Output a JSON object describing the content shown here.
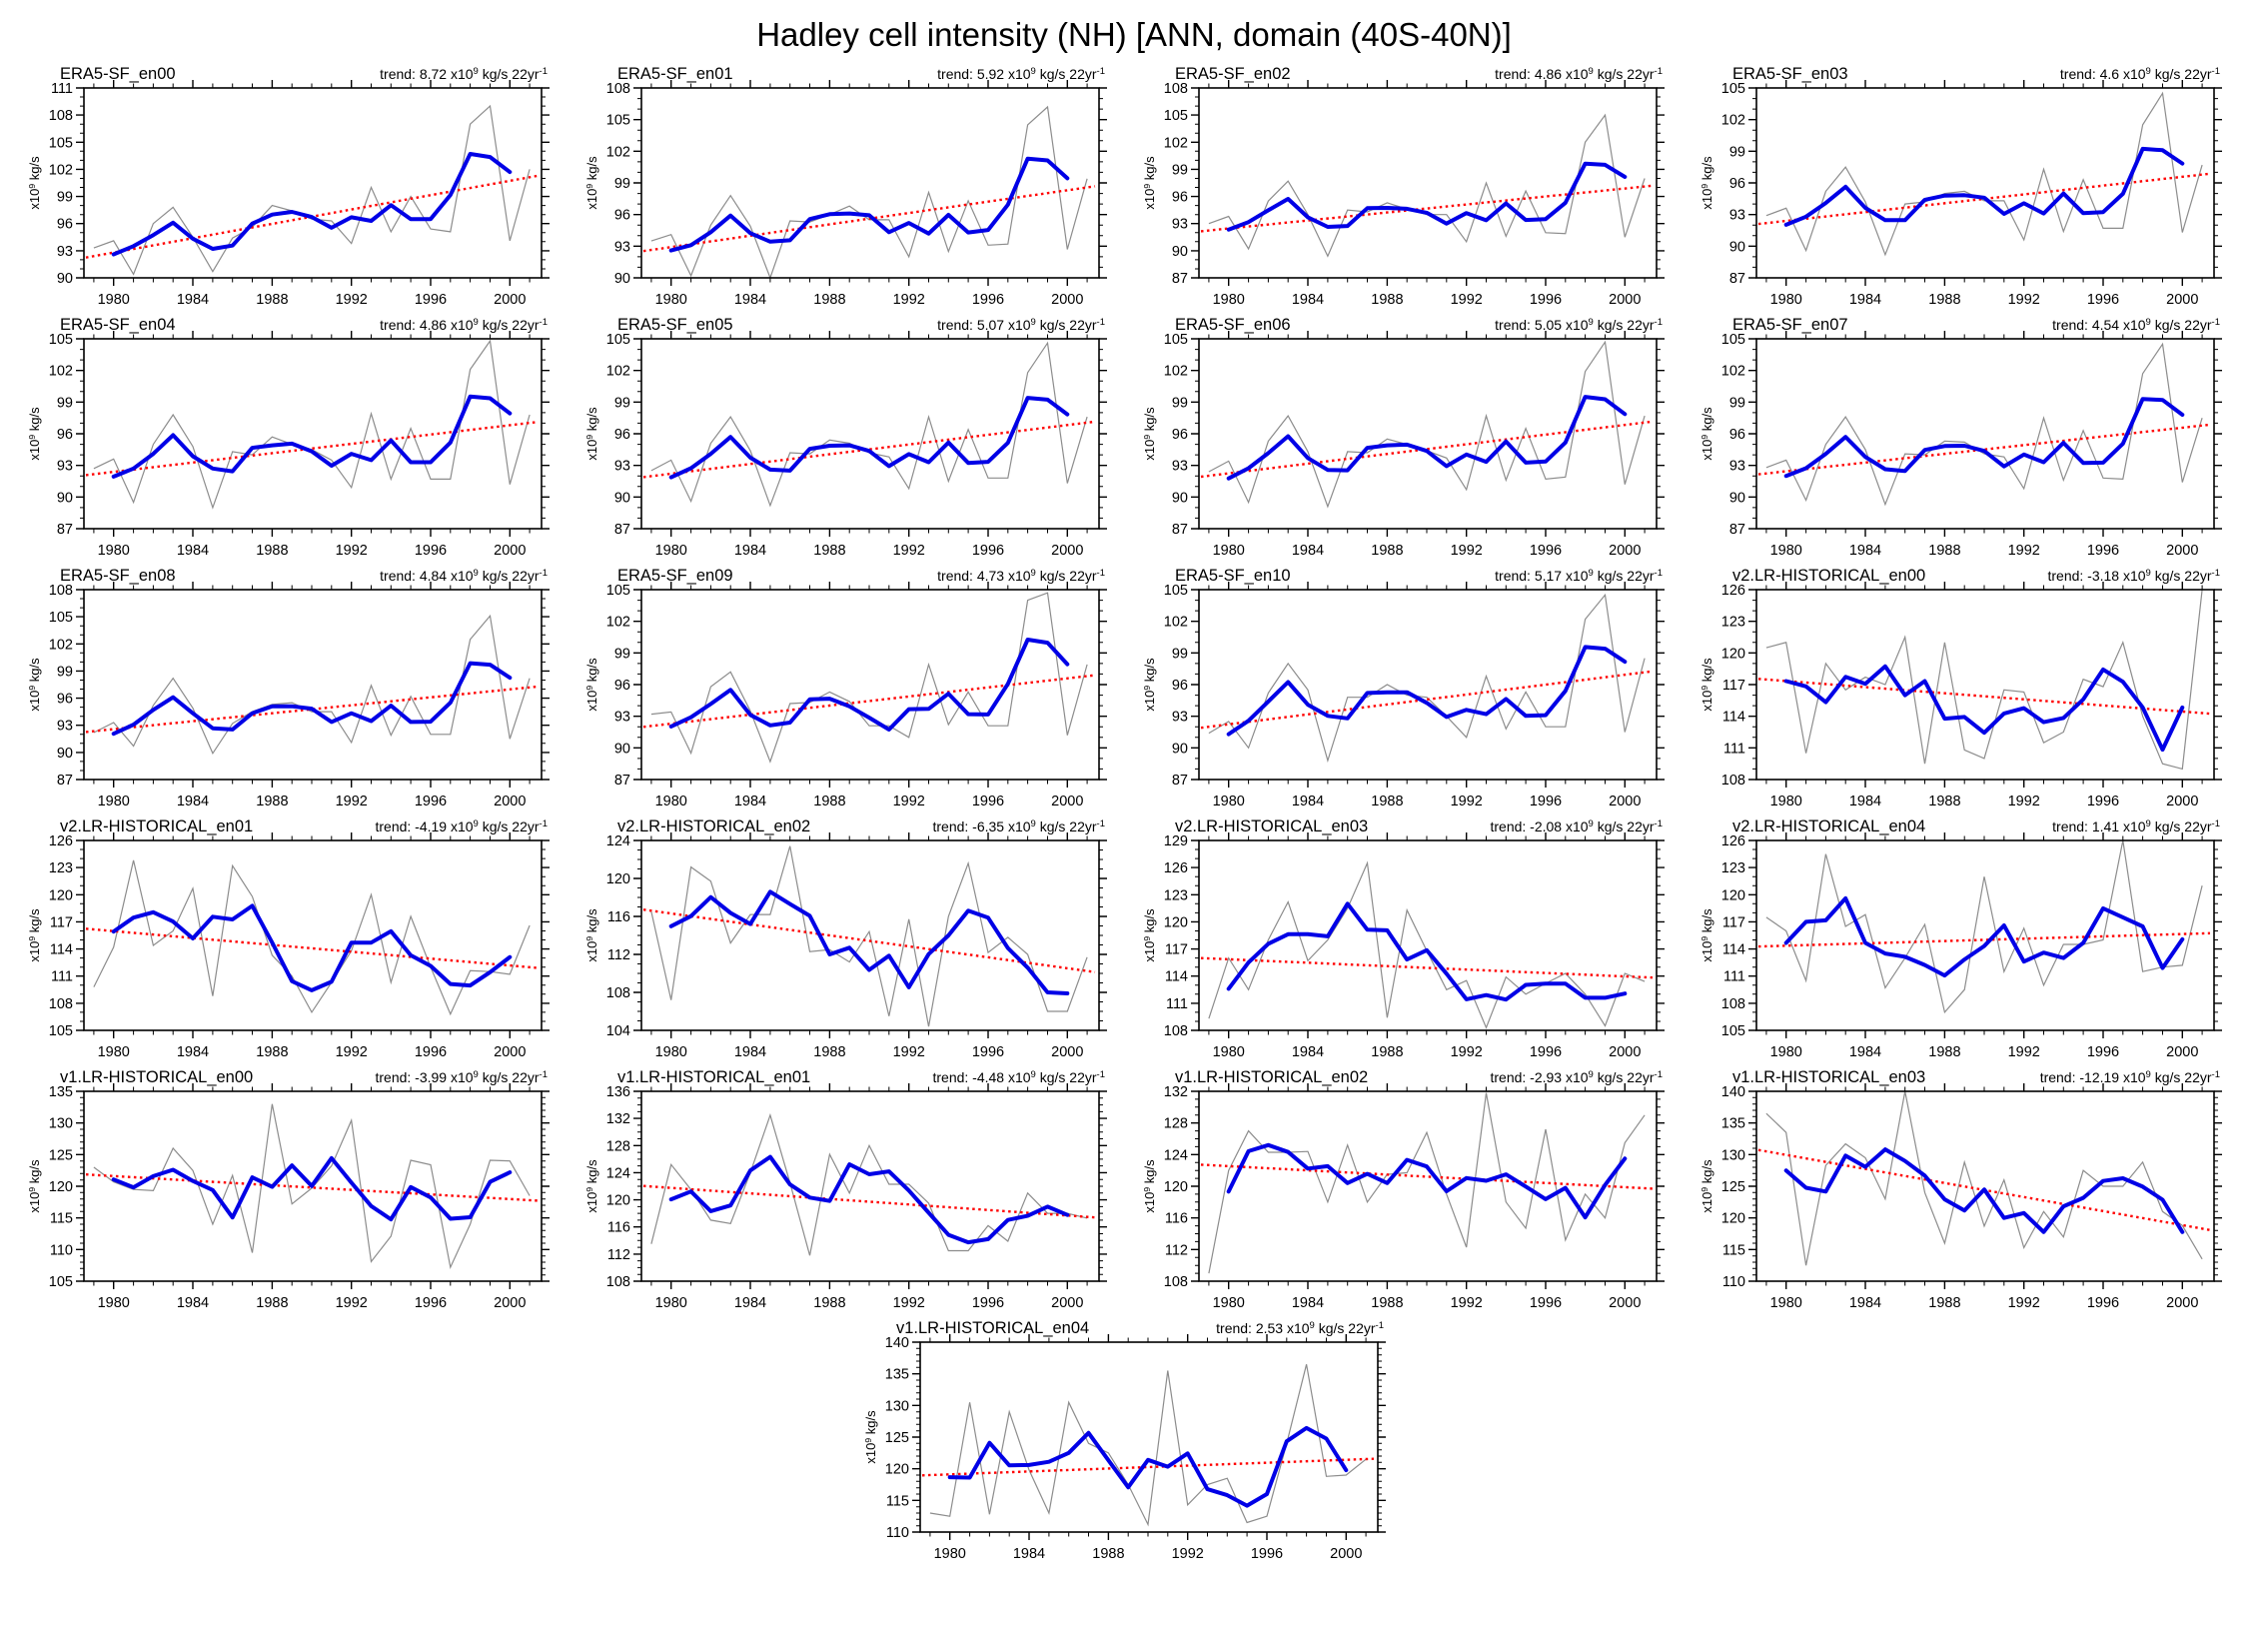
{
  "title": "Hadley cell intensity (NH) [ANN, domain (40S-40N)]",
  "labels": {
    "trend_prefix": "trend:",
    "x10": "x10",
    "exp9": "9",
    "trend_units": "kg/s 22yr",
    "exp_minus1": "-1",
    "yaxis_units": "kg/s"
  },
  "chart_data": {
    "type": "line",
    "title": "Hadley cell intensity (NH) [ANN, domain (40S-40N)]",
    "x_years": [
      1979,
      1980,
      1981,
      1982,
      1983,
      1984,
      1985,
      1986,
      1987,
      1988,
      1989,
      1990,
      1991,
      1992,
      1993,
      1994,
      1995,
      1996,
      1997,
      1998,
      1999,
      2000,
      2001
    ],
    "x_ticks": [
      1980,
      1984,
      1988,
      1992,
      1996,
      2000
    ],
    "x_range": [
      1978.5,
      2001.6
    ],
    "grid": false,
    "ylabel": "x10^9 kg/s",
    "smoothing_window": 3,
    "colors": {
      "annual": "#8c8c8c",
      "smoothed": "#0000e6",
      "trend": "#ff0000",
      "frame": "#000000"
    },
    "panels": [
      {
        "id": "era5-sf-en00",
        "title": "ERA5-SF_en00",
        "trend": "8.72",
        "ymin": 90,
        "ymax": 111,
        "ystep": 3,
        "values": [
          93.3,
          94.1,
          90.4,
          96.0,
          97.8,
          94.5,
          90.7,
          94.4,
          95.6,
          98.0,
          97.4,
          96.5,
          96.3,
          93.8,
          100.0,
          95.1,
          99.0,
          95.4,
          95.1,
          107.0,
          109.0,
          94.1,
          102.0
        ]
      },
      {
        "id": "era5-sf-en01",
        "title": "ERA5-SF_en01",
        "trend": "5.92",
        "ymin": 90,
        "ymax": 108,
        "ystep": 3,
        "values": [
          93.5,
          94.1,
          90.2,
          95.0,
          97.8,
          94.9,
          90.0,
          95.4,
          95.3,
          96.0,
          96.8,
          95.5,
          95.5,
          92.0,
          98.1,
          92.5,
          97.3,
          93.1,
          93.2,
          104.5,
          106.2,
          92.7,
          99.4
        ]
      },
      {
        "id": "era5-sf-en02",
        "title": "ERA5-SF_en02",
        "trend": "4.86",
        "ymin": 87,
        "ymax": 108,
        "ystep": 3,
        "values": [
          93.0,
          93.8,
          90.2,
          95.5,
          97.7,
          94.0,
          89.4,
          94.5,
          94.3,
          95.3,
          94.6,
          94.0,
          94.0,
          91.0,
          97.5,
          91.6,
          96.6,
          92.0,
          91.9,
          102.0,
          105.0,
          91.5,
          98.0
        ]
      },
      {
        "id": "era5-sf-en03",
        "title": "ERA5-SF_en03",
        "trend": "4.6",
        "ymin": 87,
        "ymax": 105,
        "ystep": 3,
        "values": [
          92.9,
          93.6,
          89.6,
          95.2,
          97.5,
          94.2,
          89.2,
          94.0,
          94.2,
          95.0,
          95.2,
          94.3,
          94.3,
          90.6,
          97.3,
          91.4,
          96.3,
          91.7,
          91.7,
          101.5,
          104.5,
          91.3,
          97.7
        ]
      },
      {
        "id": "era5-sf-en04",
        "title": "ERA5-SF_en04",
        "trend": "4.86",
        "ymin": 87,
        "ymax": 105,
        "ystep": 3,
        "values": [
          92.7,
          93.6,
          89.5,
          95.0,
          97.8,
          94.8,
          89.0,
          94.3,
          94.0,
          95.7,
          95.0,
          94.5,
          93.5,
          90.9,
          97.9,
          91.7,
          96.5,
          91.7,
          91.7,
          102.1,
          104.8,
          91.2,
          97.8
        ]
      },
      {
        "id": "era5-sf-en05",
        "title": "ERA5-SF_en05",
        "trend": "5.07",
        "ymin": 87,
        "ymax": 105,
        "ystep": 3,
        "values": [
          92.5,
          93.5,
          89.6,
          95.1,
          97.6,
          94.4,
          89.2,
          94.2,
          94.1,
          95.4,
          95.1,
          94.2,
          93.8,
          90.8,
          97.6,
          91.5,
          96.4,
          91.8,
          91.8,
          101.8,
          104.6,
          91.3,
          97.6
        ]
      },
      {
        "id": "era5-sf-en06",
        "title": "ERA5-SF_en06",
        "trend": "5.05",
        "ymin": 87,
        "ymax": 105,
        "ystep": 3,
        "values": [
          92.4,
          93.4,
          89.5,
          95.3,
          97.7,
          94.3,
          89.1,
          94.3,
          94.2,
          95.5,
          95.0,
          94.4,
          93.7,
          90.7,
          97.7,
          91.6,
          96.5,
          91.7,
          91.9,
          101.9,
          104.7,
          91.2,
          97.7
        ]
      },
      {
        "id": "era5-sf-en07",
        "title": "ERA5-SF_en07",
        "trend": "4.54",
        "ymin": 87,
        "ymax": 105,
        "ystep": 3,
        "values": [
          92.8,
          93.5,
          89.7,
          95.0,
          97.6,
          94.5,
          89.3,
          94.1,
          94.0,
          95.3,
          95.2,
          94.1,
          93.8,
          90.8,
          97.5,
          91.6,
          96.3,
          91.8,
          91.7,
          101.7,
          104.5,
          91.4,
          97.5
        ]
      },
      {
        "id": "era5-sf-en08",
        "title": "ERA5-SF_en08",
        "trend": "4.84",
        "ymin": 87,
        "ymax": 108,
        "ystep": 3,
        "values": [
          92.2,
          93.3,
          90.7,
          95.2,
          98.2,
          94.9,
          89.9,
          93.2,
          94.5,
          95.3,
          95.5,
          94.5,
          94.5,
          91.1,
          97.4,
          91.9,
          96.2,
          92.0,
          92.0,
          102.5,
          105.1,
          91.5,
          98.2
        ]
      },
      {
        "id": "era5-sf-en09",
        "title": "ERA5-SF_en09",
        "trend": "4.73",
        "ymin": 87,
        "ymax": 105,
        "ystep": 3,
        "values": [
          93.2,
          93.4,
          89.5,
          95.8,
          97.2,
          93.5,
          88.7,
          94.2,
          94.3,
          95.3,
          94.4,
          92.1,
          92.1,
          91.0,
          97.9,
          92.2,
          95.3,
          92.1,
          92.1,
          104.0,
          104.7,
          91.2,
          97.9
        ]
      },
      {
        "id": "era5-sf-en10",
        "title": "ERA5-SF_en10",
        "trend": "5.17",
        "ymin": 87,
        "ymax": 105,
        "ystep": 3,
        "values": [
          91.4,
          92.5,
          90.0,
          95.2,
          98.0,
          95.5,
          88.8,
          94.8,
          94.8,
          96.0,
          95.0,
          94.8,
          93.0,
          91.0,
          96.8,
          91.8,
          95.3,
          92.0,
          92.0,
          102.2,
          104.5,
          91.5,
          98.5
        ]
      },
      {
        "id": "v2-lr-historical-en00",
        "title": "v2.LR-HISTORICAL_en00",
        "trend": "-3.18",
        "ymin": 108,
        "ymax": 126,
        "ystep": 3,
        "values": [
          120.5,
          121.0,
          110.5,
          119.0,
          116.5,
          117.7,
          117.0,
          121.5,
          109.5,
          121.0,
          110.8,
          110.0,
          116.5,
          116.3,
          111.5,
          112.5,
          117.5,
          116.8,
          121.0,
          114.0,
          109.5,
          109.0,
          126.0
        ]
      },
      {
        "id": "v2-lr-historical-en01",
        "title": "v2.LR-HISTORICAL_en01",
        "trend": "-4.19",
        "ymin": 105,
        "ymax": 126,
        "ystep": 3,
        "values": [
          109.8,
          114.2,
          123.8,
          114.4,
          116.0,
          120.7,
          108.8,
          123.2,
          119.8,
          113.3,
          111.0,
          107.0,
          110.3,
          113.8,
          120.0,
          110.3,
          117.6,
          112.0,
          106.8,
          111.6,
          111.5,
          111.2,
          116.6
        ]
      },
      {
        "id": "v2-lr-historical-en02",
        "title": "v2.LR-HISTORICAL_en02",
        "trend": "-6.35",
        "ymin": 104,
        "ymax": 124,
        "ystep": 4,
        "values": [
          116.5,
          107.2,
          121.2,
          119.7,
          113.2,
          116.2,
          116.2,
          123.4,
          112.3,
          112.5,
          111.2,
          114.4,
          105.5,
          115.7,
          104.4,
          116.0,
          121.6,
          112.2,
          113.8,
          112.0,
          106.0,
          106.0,
          111.7
        ]
      },
      {
        "id": "v2-lr-historical-en03",
        "title": "v2.LR-HISTORICAL_en03",
        "trend": "-2.08",
        "ymin": 108,
        "ymax": 129,
        "ystep": 3,
        "values": [
          109.3,
          116.0,
          112.5,
          118.0,
          122.2,
          115.7,
          118.0,
          121.5,
          126.5,
          109.4,
          121.3,
          116.8,
          112.5,
          113.5,
          108.3,
          113.9,
          112.0,
          113.2,
          114.3,
          112.0,
          108.5,
          114.3,
          113.4
        ]
      },
      {
        "id": "v2-lr-historical-en04",
        "title": "v2.LR-HISTORICAL_en04",
        "trend": "1.41",
        "ymin": 105,
        "ymax": 126,
        "ystep": 3,
        "values": [
          117.5,
          116.0,
          110.5,
          124.5,
          116.5,
          117.8,
          109.7,
          113.0,
          116.7,
          107.0,
          109.5,
          122.0,
          111.5,
          116.3,
          110.0,
          114.5,
          114.5,
          115.0,
          126.0,
          111.5,
          112.0,
          112.2,
          121.0
        ]
      },
      {
        "id": "v1-lr-historical-en00",
        "title": "v1.LR-HISTORICAL_en00",
        "trend": "-3.99",
        "ymin": 105,
        "ymax": 135,
        "ystep": 5,
        "values": [
          123.0,
          120.7,
          119.5,
          119.3,
          126.0,
          122.5,
          114.0,
          121.7,
          109.5,
          133.0,
          117.2,
          119.7,
          123.2,
          130.4,
          108.1,
          112.1,
          124.1,
          123.4,
          107.2,
          114.0,
          124.1,
          124.0,
          118.5
        ]
      },
      {
        "id": "v1-lr-historical-en01",
        "title": "v1.LR-HISTORICAL_en01",
        "trend": "-4.48",
        "ymin": 108,
        "ymax": 136,
        "ystep": 4,
        "values": [
          113.5,
          125.2,
          121.5,
          117.0,
          116.5,
          124.0,
          132.5,
          122.5,
          111.8,
          126.7,
          121.0,
          128.0,
          122.3,
          122.3,
          119.5,
          112.5,
          112.5,
          116.2,
          113.9,
          121.0,
          118.0,
          118.0,
          117.3
        ]
      },
      {
        "id": "v1-lr-historical-en02",
        "title": "v1.LR-HISTORICAL_en02",
        "trend": "-2.93",
        "ymin": 108,
        "ymax": 132,
        "ystep": 4,
        "values": [
          109.0,
          122.0,
          127.0,
          124.3,
          124.3,
          124.4,
          118.0,
          125.2,
          118.0,
          121.5,
          121.7,
          126.8,
          119.0,
          112.3,
          131.8,
          118.0,
          114.7,
          127.2,
          113.2,
          119.0,
          116.0,
          125.5,
          129.0
        ]
      },
      {
        "id": "v1-lr-historical-en03",
        "title": "v1.LR-HISTORICAL_en03",
        "trend": "-12.19",
        "ymin": 110,
        "ymax": 140,
        "ystep": 5,
        "values": [
          136.5,
          133.5,
          112.5,
          128.3,
          131.7,
          129.5,
          123.0,
          140.0,
          124.0,
          116.0,
          128.8,
          118.7,
          126.0,
          115.3,
          121.0,
          117.0,
          127.5,
          125.0,
          125.0,
          128.8,
          121.0,
          118.8,
          113.5
        ]
      },
      {
        "id": "v1-lr-historical-en04",
        "title": "v1.LR-HISTORICAL_en04",
        "trend": "2.53",
        "ymin": 110,
        "ymax": 140,
        "ystep": 5,
        "values": [
          113.0,
          112.5,
          130.5,
          112.8,
          129.0,
          119.8,
          113.0,
          130.5,
          124.0,
          122.5,
          117.5,
          111.2,
          135.5,
          114.3,
          117.5,
          118.5,
          111.5,
          112.5,
          124.0,
          136.5,
          118.8,
          119.0,
          121.5
        ]
      }
    ]
  }
}
